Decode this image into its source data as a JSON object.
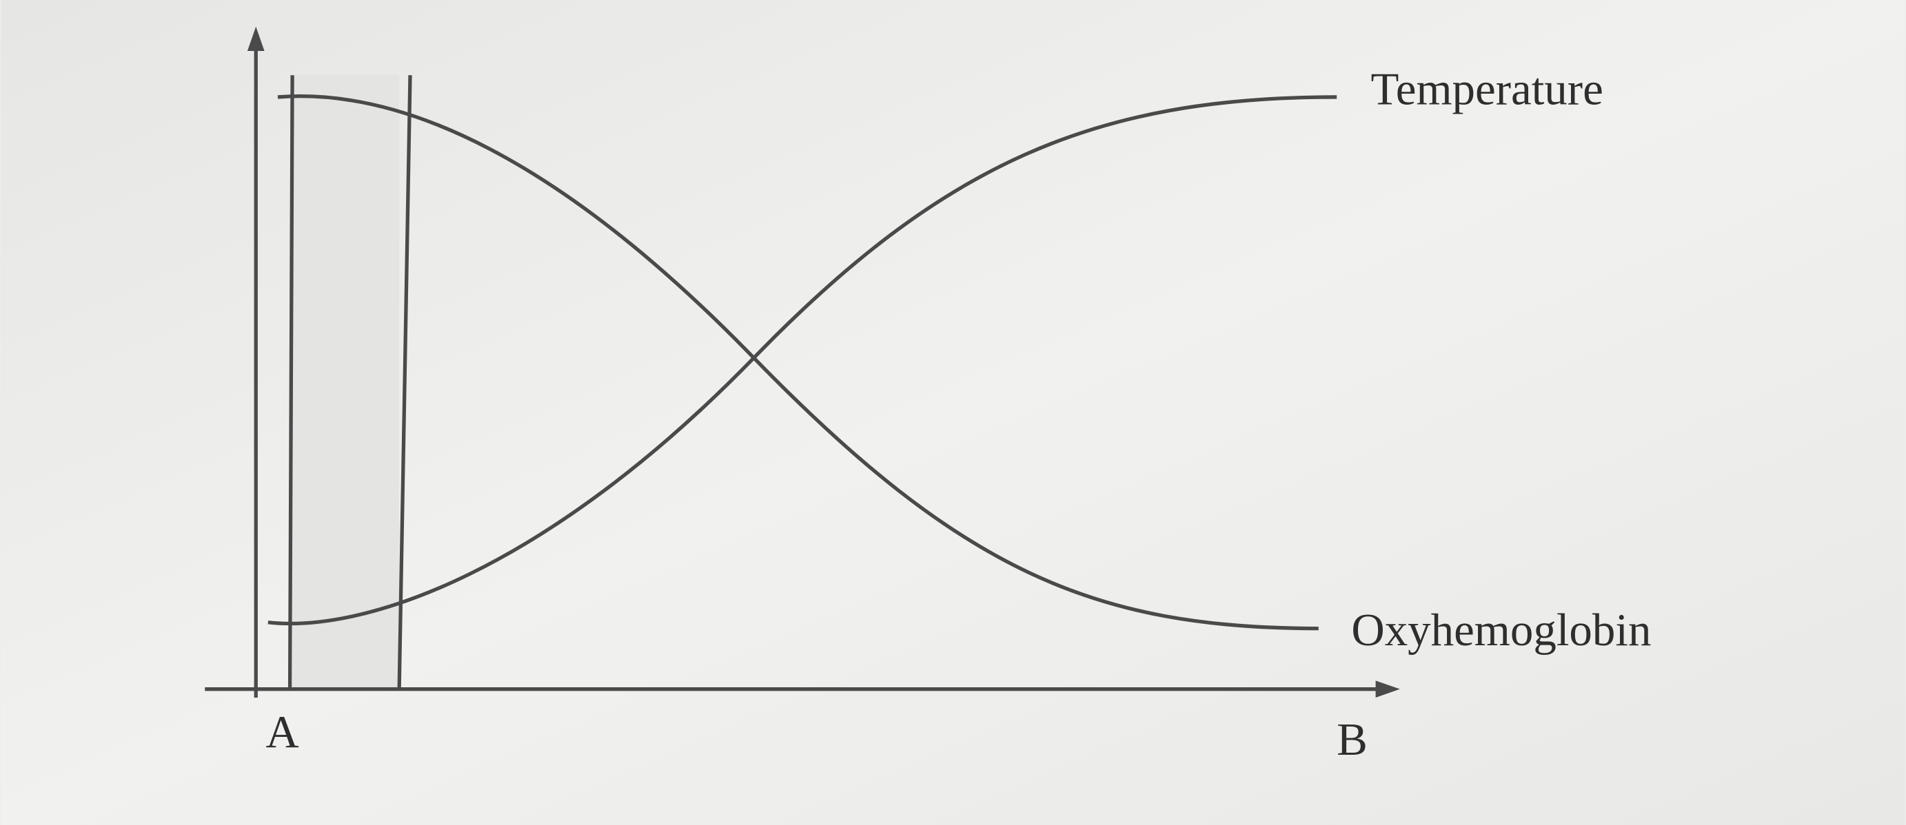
{
  "curves": [
    {
      "label": "Temperature"
    },
    {
      "label": "Oxyhemoglobin"
    }
  ],
  "axis": {
    "start": "A",
    "end": "B"
  }
}
